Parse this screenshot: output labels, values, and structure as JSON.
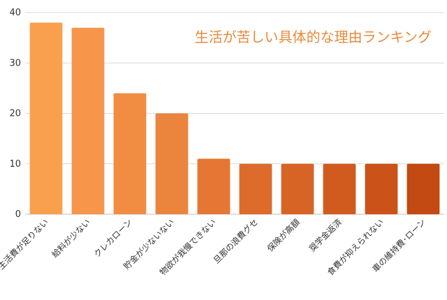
{
  "chart_data": {
    "type": "bar",
    "title": "生活が苦しい具体的な理由ランキング",
    "xlabel": "",
    "ylabel": "",
    "ylim": [
      0,
      40
    ],
    "yticks": [
      0,
      10,
      20,
      30,
      40
    ],
    "grid": true,
    "legend": "none",
    "categories": [
      "生活費が足りない",
      "給料が少ない",
      "クレカローン",
      "貯金が少ないない",
      "物欲が我慢できない",
      "旦那の浪費グセ",
      "保険が高額",
      "奨学金返済",
      "食費が抑えられない",
      "車の維持費･ローン"
    ],
    "values": [
      38,
      37,
      24,
      20,
      11,
      10,
      10,
      10,
      10,
      10
    ],
    "bar_colors": [
      "#f9a04f",
      "#f7954a",
      "#f08d43",
      "#eb843c",
      "#e57633",
      "#dd6b2b",
      "#d76425",
      "#d15b1e",
      "#cb5218",
      "#c34a12"
    ]
  }
}
